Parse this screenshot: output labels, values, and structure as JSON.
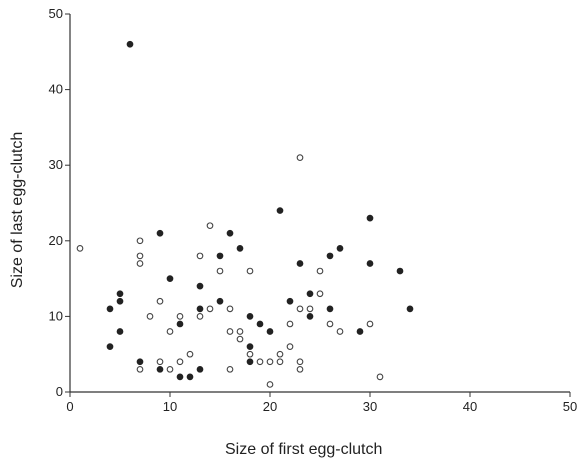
{
  "chart_data": {
    "type": "scatter",
    "title": "",
    "xlabel": "Size of first egg-clutch",
    "ylabel": "Size of last egg-clutch",
    "xlim": [
      0,
      50
    ],
    "ylim": [
      0,
      50
    ],
    "xticks": [
      "0",
      "10",
      "20",
      "30",
      "40",
      "50"
    ],
    "yticks": [
      "0",
      "10",
      "20",
      "30",
      "40",
      "50"
    ],
    "grid": false,
    "colors": {
      "filled": "#222222",
      "open_stroke": "#444444",
      "open_fill": "#ffffff",
      "axis": "#333333"
    },
    "series": [
      {
        "marker": "filled-circle",
        "points": [
          [
            6,
            46
          ],
          [
            4,
            11
          ],
          [
            4,
            6
          ],
          [
            5,
            13
          ],
          [
            5,
            12
          ],
          [
            5,
            8
          ],
          [
            7,
            4
          ],
          [
            9,
            21
          ],
          [
            9,
            3
          ],
          [
            10,
            15
          ],
          [
            11,
            9
          ],
          [
            11,
            2
          ],
          [
            12,
            2
          ],
          [
            13,
            14
          ],
          [
            13,
            11
          ],
          [
            13,
            3
          ],
          [
            15,
            18
          ],
          [
            15,
            12
          ],
          [
            16,
            21
          ],
          [
            17,
            19
          ],
          [
            18,
            10
          ],
          [
            18,
            6
          ],
          [
            18,
            4
          ],
          [
            19,
            9
          ],
          [
            20,
            8
          ],
          [
            21,
            24
          ],
          [
            22,
            12
          ],
          [
            23,
            17
          ],
          [
            24,
            13
          ],
          [
            24,
            10
          ],
          [
            26,
            18
          ],
          [
            26,
            11
          ],
          [
            27,
            19
          ],
          [
            29,
            8
          ],
          [
            30,
            23
          ],
          [
            30,
            17
          ],
          [
            33,
            16
          ],
          [
            34,
            11
          ]
        ]
      },
      {
        "marker": "open-circle",
        "points": [
          [
            1,
            19
          ],
          [
            7,
            20
          ],
          [
            7,
            18
          ],
          [
            7,
            17
          ],
          [
            7,
            3
          ],
          [
            8,
            10
          ],
          [
            9,
            12
          ],
          [
            9,
            4
          ],
          [
            10,
            8
          ],
          [
            10,
            3
          ],
          [
            11,
            10
          ],
          [
            11,
            4
          ],
          [
            12,
            5
          ],
          [
            13,
            18
          ],
          [
            13,
            10
          ],
          [
            14,
            22
          ],
          [
            14,
            11
          ],
          [
            15,
            16
          ],
          [
            16,
            11
          ],
          [
            16,
            8
          ],
          [
            16,
            3
          ],
          [
            17,
            8
          ],
          [
            17,
            7
          ],
          [
            18,
            16
          ],
          [
            18,
            5
          ],
          [
            19,
            4
          ],
          [
            20,
            4
          ],
          [
            20,
            1
          ],
          [
            21,
            5
          ],
          [
            21,
            4
          ],
          [
            22,
            9
          ],
          [
            22,
            6
          ],
          [
            23,
            31
          ],
          [
            23,
            11
          ],
          [
            23,
            4
          ],
          [
            23,
            3
          ],
          [
            24,
            11
          ],
          [
            25,
            16
          ],
          [
            25,
            13
          ],
          [
            26,
            9
          ],
          [
            27,
            8
          ],
          [
            30,
            9
          ],
          [
            31,
            2
          ]
        ]
      }
    ]
  }
}
